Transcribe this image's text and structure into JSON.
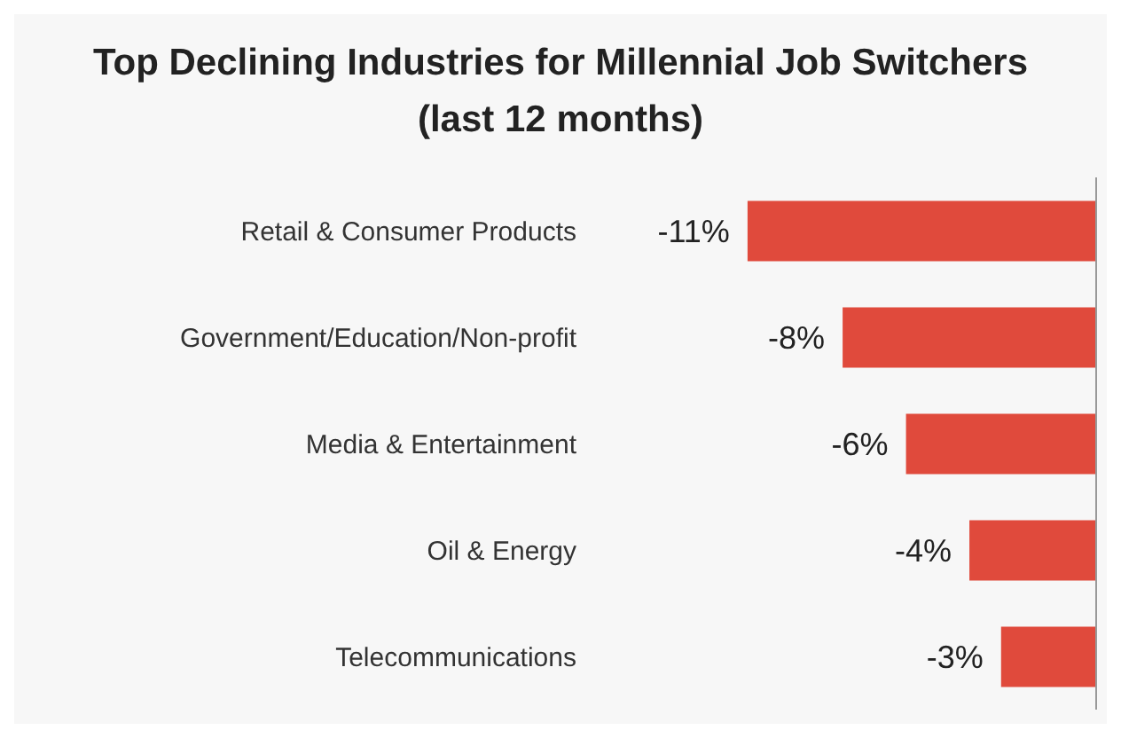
{
  "chart_data": {
    "type": "bar",
    "orientation": "horizontal",
    "title": "Top Declining Industries for Millennial Job Switchers",
    "subtitle": "(last 12 months)",
    "categories": [
      "Retail & Consumer Products",
      "Government/Education/Non-profit",
      "Media & Entertainment",
      "Oil & Energy",
      "Telecommunications"
    ],
    "values": [
      -11,
      -8,
      -6,
      -4,
      -3
    ],
    "value_labels": [
      "-11%",
      "-8%",
      "-6%",
      "-4%",
      "-3%"
    ],
    "color": "#e04a3c",
    "tick_labels": "y",
    "grid": false,
    "legend": false
  }
}
